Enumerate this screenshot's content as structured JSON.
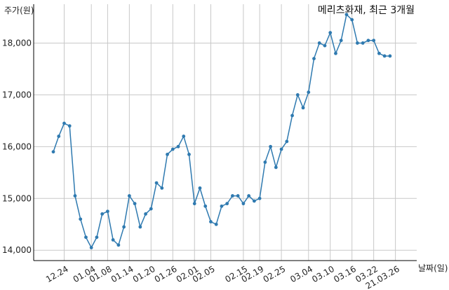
{
  "chart_data": {
    "type": "line",
    "title": "메리츠화재, 최근 3개월",
    "ylabel": "주가(원)",
    "xlabel": "날짜(일)",
    "ylim": [
      13800,
      18750
    ],
    "yticks": [
      14000,
      15000,
      16000,
      17000,
      18000
    ],
    "ytick_labels": [
      "14,000",
      "15,000",
      "16,000",
      "17,000",
      "18,000"
    ],
    "grid": true,
    "xtick_labels": [
      "12.24",
      "01.04",
      "01.08",
      "01.14",
      "01.20",
      "01.26",
      "02.01",
      "02.05",
      "02.15",
      "02.19",
      "02.25",
      "03.04",
      "03.10",
      "03.16",
      "03.22",
      "21.03.26"
    ],
    "xtick_index": [
      2,
      7,
      10,
      14,
      18,
      22,
      26,
      29,
      35,
      38,
      42,
      47,
      51,
      55,
      59,
      63
    ],
    "series": [
      {
        "values": [
          15900,
          16200,
          16450,
          16400,
          15050,
          14600,
          14250,
          14050,
          14250,
          14700,
          14750,
          14200,
          14100,
          14450,
          15050,
          14900,
          14450,
          14700,
          14800,
          15300,
          15200,
          15850,
          15950,
          16000,
          16200,
          15850,
          14900,
          15200,
          14850,
          14550,
          14500,
          14850,
          14900,
          15050,
          15050,
          14900,
          15050,
          14950,
          15000,
          15700,
          16000,
          15600,
          15950,
          16100,
          16600,
          17000,
          16750,
          17050,
          17700,
          18000,
          17950,
          18200,
          17800,
          18050,
          18550,
          18450,
          18000,
          18000,
          18050,
          18050,
          17800,
          17750,
          17750
        ]
      }
    ]
  }
}
